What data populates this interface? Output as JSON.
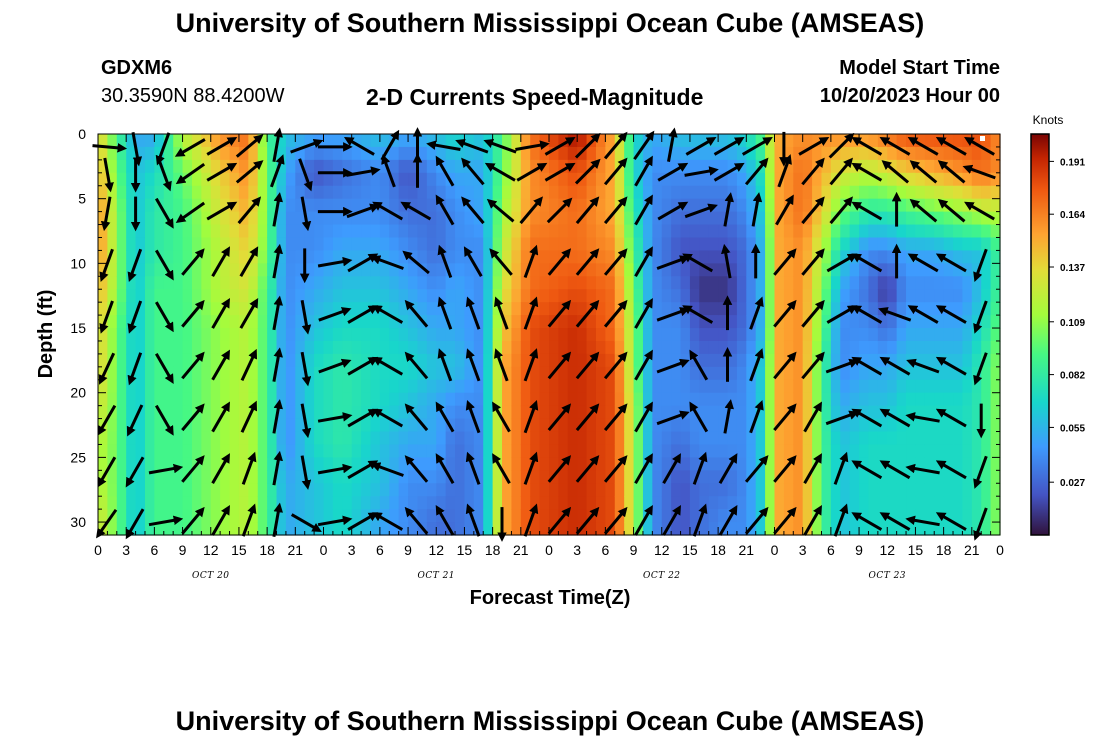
{
  "header": {
    "title": "University of Southern Mississippi Ocean Cube (AMSEAS)",
    "station_id": "GDXM6",
    "station_coords": "30.3590N  88.4200W",
    "subtitle": "2-D Currents Speed-Magnitude",
    "model_start_label": "Model Start Time",
    "model_start_value": "10/20/2023 Hour 00"
  },
  "footer": {
    "title": "University of Southern Mississippi Ocean Cube (AMSEAS)"
  },
  "chart_data": {
    "type": "heatmap",
    "title": "2-D Currents Speed-Magnitude",
    "xlabel": "Forecast Time(Z)",
    "ylabel": "Depth (ft)",
    "xlim": [
      0,
      96
    ],
    "ylim": [
      31,
      0
    ],
    "x_ticks": [
      0,
      3,
      6,
      9,
      12,
      15,
      18,
      21,
      24,
      27,
      30,
      33,
      36,
      39,
      42,
      45,
      48,
      51,
      54,
      57,
      60,
      63,
      66,
      69,
      72,
      75,
      78,
      81,
      84,
      87,
      90,
      93,
      96
    ],
    "x_tick_labels": [
      "0",
      "3",
      "6",
      "9",
      "12",
      "15",
      "18",
      "21",
      "0",
      "3",
      "6",
      "9",
      "12",
      "15",
      "18",
      "21",
      "0",
      "3",
      "6",
      "9",
      "12",
      "15",
      "18",
      "21",
      "0",
      "3",
      "6",
      "9",
      "12",
      "15",
      "18",
      "21",
      "0"
    ],
    "date_labels": [
      {
        "label": "OCT 20",
        "x": 12
      },
      {
        "label": "OCT 21",
        "x": 36
      },
      {
        "label": "OCT 22",
        "x": 60
      },
      {
        "label": "OCT 23",
        "x": 84
      }
    ],
    "y_ticks": [
      0,
      5,
      10,
      15,
      20,
      25,
      30
    ],
    "colorbar": {
      "unit": "Knots",
      "min": 0,
      "max": 0.205,
      "tick_values": [
        0.027,
        0.055,
        0.082,
        0.109,
        0.137,
        0.164,
        0.191
      ],
      "tick_labels": [
        "0.027",
        "0.055",
        "0.082",
        "0.109",
        "0.137",
        "0.164",
        "0.191"
      ]
    },
    "depth_rows": [
      0,
      3,
      6,
      9,
      12,
      15,
      18,
      21,
      24,
      27,
      30
    ],
    "speed_by_hour": [
      [
        0,
        0.14,
        0.15,
        0.16,
        0.16,
        0.15,
        0.14,
        0.14,
        0.13,
        0.12,
        0.12,
        0.13
      ],
      [
        2,
        0.09,
        0.1,
        0.11,
        0.11,
        0.11,
        0.1,
        0.1,
        0.1,
        0.1,
        0.1,
        0.1
      ],
      [
        4,
        0.05,
        0.06,
        0.06,
        0.06,
        0.06,
        0.06,
        0.06,
        0.06,
        0.06,
        0.06,
        0.06
      ],
      [
        6,
        0.05,
        0.07,
        0.08,
        0.08,
        0.09,
        0.09,
        0.09,
        0.09,
        0.09,
        0.09,
        0.09
      ],
      [
        9,
        0.12,
        0.1,
        0.09,
        0.09,
        0.09,
        0.09,
        0.09,
        0.09,
        0.09,
        0.09,
        0.09
      ],
      [
        13,
        0.16,
        0.14,
        0.13,
        0.12,
        0.12,
        0.11,
        0.11,
        0.11,
        0.11,
        0.11,
        0.11
      ],
      [
        16,
        0.17,
        0.16,
        0.15,
        0.14,
        0.13,
        0.12,
        0.12,
        0.12,
        0.12,
        0.12,
        0.12
      ],
      [
        18,
        0.09,
        0.1,
        0.1,
        0.1,
        0.09,
        0.09,
        0.09,
        0.09,
        0.09,
        0.09,
        0.09
      ],
      [
        20,
        0.06,
        0.05,
        0.04,
        0.04,
        0.04,
        0.04,
        0.04,
        0.04,
        0.04,
        0.05,
        0.05
      ],
      [
        23,
        0.05,
        0.02,
        0.04,
        0.04,
        0.05,
        0.06,
        0.07,
        0.07,
        0.07,
        0.06,
        0.06
      ],
      [
        26,
        0.05,
        0.03,
        0.04,
        0.05,
        0.06,
        0.07,
        0.08,
        0.08,
        0.08,
        0.07,
        0.07
      ],
      [
        30,
        0.06,
        0.04,
        0.04,
        0.05,
        0.06,
        0.07,
        0.07,
        0.07,
        0.06,
        0.06,
        0.05
      ],
      [
        33,
        0.05,
        0.02,
        0.03,
        0.04,
        0.05,
        0.06,
        0.07,
        0.06,
        0.05,
        0.04,
        0.04
      ],
      [
        36,
        0.06,
        0.04,
        0.03,
        0.03,
        0.04,
        0.05,
        0.06,
        0.05,
        0.05,
        0.04,
        0.03
      ],
      [
        38,
        0.07,
        0.05,
        0.04,
        0.04,
        0.05,
        0.05,
        0.06,
        0.04,
        0.03,
        0.03,
        0.03
      ],
      [
        41,
        0.06,
        0.05,
        0.05,
        0.04,
        0.04,
        0.04,
        0.04,
        0.04,
        0.04,
        0.04,
        0.04
      ],
      [
        43,
        0.09,
        0.1,
        0.11,
        0.12,
        0.13,
        0.14,
        0.15,
        0.15,
        0.15,
        0.15,
        0.15
      ],
      [
        46,
        0.17,
        0.16,
        0.16,
        0.17,
        0.17,
        0.18,
        0.18,
        0.18,
        0.18,
        0.18,
        0.18
      ],
      [
        51,
        0.2,
        0.18,
        0.17,
        0.17,
        0.18,
        0.19,
        0.19,
        0.19,
        0.19,
        0.19,
        0.19
      ],
      [
        55,
        0.15,
        0.15,
        0.15,
        0.16,
        0.17,
        0.17,
        0.18,
        0.18,
        0.18,
        0.18,
        0.18
      ],
      [
        57,
        0.07,
        0.07,
        0.08,
        0.09,
        0.1,
        0.11,
        0.11,
        0.12,
        0.12,
        0.12,
        0.12
      ],
      [
        59,
        0.05,
        0.04,
        0.04,
        0.04,
        0.04,
        0.04,
        0.04,
        0.04,
        0.04,
        0.04,
        0.04
      ],
      [
        62,
        0.06,
        0.04,
        0.03,
        0.02,
        0.03,
        0.04,
        0.04,
        0.04,
        0.03,
        0.02,
        0.02
      ],
      [
        64,
        0.06,
        0.04,
        0.03,
        0.02,
        0.01,
        0.02,
        0.03,
        0.04,
        0.04,
        0.03,
        0.03
      ],
      [
        67,
        0.06,
        0.04,
        0.03,
        0.02,
        0.01,
        0.02,
        0.03,
        0.04,
        0.04,
        0.03,
        0.04
      ],
      [
        69,
        0.07,
        0.05,
        0.04,
        0.03,
        0.03,
        0.03,
        0.04,
        0.04,
        0.04,
        0.04,
        0.04
      ],
      [
        71,
        0.1,
        0.08,
        0.07,
        0.06,
        0.06,
        0.06,
        0.07,
        0.07,
        0.07,
        0.07,
        0.07
      ],
      [
        72,
        0.15,
        0.15,
        0.15,
        0.15,
        0.15,
        0.15,
        0.15,
        0.15,
        0.15,
        0.15,
        0.15
      ],
      [
        75,
        0.16,
        0.17,
        0.17,
        0.16,
        0.16,
        0.16,
        0.16,
        0.16,
        0.16,
        0.16,
        0.16
      ],
      [
        77,
        0.16,
        0.15,
        0.14,
        0.12,
        0.11,
        0.1,
        0.09,
        0.09,
        0.09,
        0.09,
        0.09
      ],
      [
        79,
        0.16,
        0.13,
        0.1,
        0.07,
        0.05,
        0.04,
        0.04,
        0.05,
        0.06,
        0.06,
        0.06
      ],
      [
        82,
        0.16,
        0.12,
        0.08,
        0.04,
        0.03,
        0.04,
        0.05,
        0.06,
        0.07,
        0.07,
        0.07
      ],
      [
        84,
        0.17,
        0.13,
        0.08,
        0.04,
        0.01,
        0.03,
        0.05,
        0.06,
        0.07,
        0.07,
        0.07
      ],
      [
        86,
        0.18,
        0.14,
        0.09,
        0.05,
        0.04,
        0.05,
        0.06,
        0.07,
        0.07,
        0.07,
        0.07
      ],
      [
        89,
        0.18,
        0.15,
        0.1,
        0.05,
        0.04,
        0.05,
        0.06,
        0.07,
        0.07,
        0.07,
        0.07
      ],
      [
        92,
        0.18,
        0.16,
        0.11,
        0.06,
        0.04,
        0.05,
        0.06,
        0.07,
        0.07,
        0.07,
        0.07
      ],
      [
        94,
        0.18,
        0.17,
        0.12,
        0.06,
        0.06,
        0.07,
        0.08,
        0.08,
        0.08,
        0.08,
        0.08
      ],
      [
        96,
        0.16,
        0.16,
        0.12,
        0.09,
        0.09,
        0.1,
        0.11,
        0.11,
        0.11,
        0.11,
        0.11
      ]
    ],
    "vector_hours": [
      1,
      4,
      7,
      10,
      13,
      16,
      19,
      22,
      25,
      28,
      31,
      34,
      37,
      40,
      43,
      46,
      49,
      52,
      55,
      58,
      61,
      64,
      67,
      70,
      73,
      76,
      79,
      82,
      85,
      88,
      91,
      94
    ],
    "vector_depths": [
      1,
      3,
      6,
      10,
      14,
      18,
      22,
      26,
      30
    ],
    "vector_dir_by_hour": [
      [
        1,
        95,
        170,
        190,
        200,
        200,
        205,
        210,
        210,
        215
      ],
      [
        4,
        170,
        180,
        180,
        200,
        200,
        200,
        205,
        210,
        210
      ],
      [
        7,
        200,
        160,
        150,
        150,
        150,
        150,
        150,
        80,
        80
      ],
      [
        10,
        240,
        235,
        235,
        40,
        40,
        40,
        40,
        40,
        40
      ],
      [
        13,
        60,
        60,
        60,
        30,
        30,
        30,
        30,
        30,
        30
      ],
      [
        16,
        50,
        50,
        40,
        30,
        30,
        25,
        25,
        20,
        20
      ],
      [
        19,
        10,
        20,
        10,
        10,
        10,
        10,
        10,
        10,
        10
      ],
      [
        22,
        70,
        160,
        170,
        180,
        170,
        170,
        170,
        170,
        120
      ],
      [
        25,
        90,
        90,
        90,
        80,
        70,
        70,
        80,
        80,
        80
      ],
      [
        28,
        300,
        80,
        70,
        60,
        60,
        60,
        60,
        60,
        60
      ],
      [
        31,
        30,
        340,
        300,
        290,
        300,
        300,
        300,
        290,
        300
      ],
      [
        34,
        0,
        0,
        300,
        310,
        320,
        320,
        320,
        320,
        320
      ],
      [
        37,
        280,
        330,
        330,
        340,
        340,
        340,
        330,
        330,
        330
      ],
      [
        40,
        290,
        320,
        320,
        330,
        340,
        340,
        340,
        340,
        340
      ],
      [
        43,
        290,
        300,
        310,
        320,
        340,
        340,
        330,
        330,
        180
      ],
      [
        46,
        80,
        60,
        40,
        20,
        20,
        20,
        20,
        20,
        20
      ],
      [
        49,
        60,
        60,
        45,
        40,
        40,
        40,
        40,
        40,
        40
      ],
      [
        52,
        45,
        45,
        40,
        40,
        40,
        40,
        40,
        40,
        40
      ],
      [
        55,
        40,
        40,
        40,
        40,
        40,
        40,
        40,
        40,
        40
      ],
      [
        58,
        35,
        30,
        30,
        30,
        30,
        30,
        30,
        30,
        30
      ],
      [
        61,
        10,
        60,
        60,
        70,
        70,
        70,
        70,
        30,
        30
      ],
      [
        64,
        60,
        80,
        70,
        300,
        300,
        330,
        330,
        20,
        20
      ],
      [
        67,
        60,
        60,
        10,
        350,
        0,
        0,
        10,
        30,
        30
      ],
      [
        70,
        60,
        40,
        10,
        0,
        20,
        20,
        20,
        40,
        40
      ],
      [
        73,
        180,
        20,
        30,
        40,
        40,
        40,
        40,
        40,
        40
      ],
      [
        76,
        60,
        40,
        40,
        40,
        40,
        40,
        30,
        30,
        30
      ],
      [
        79,
        45,
        40,
        40,
        60,
        60,
        70,
        70,
        20,
        20
      ],
      [
        82,
        300,
        300,
        300,
        300,
        300,
        300,
        300,
        300,
        300
      ],
      [
        85,
        300,
        310,
        0,
        0,
        290,
        300,
        300,
        300,
        300
      ],
      [
        88,
        300,
        310,
        310,
        300,
        300,
        290,
        280,
        280,
        280
      ],
      [
        91,
        300,
        310,
        310,
        300,
        300,
        300,
        300,
        300,
        300
      ],
      [
        94,
        300,
        290,
        300,
        200,
        200,
        200,
        180,
        200,
        200
      ]
    ]
  }
}
